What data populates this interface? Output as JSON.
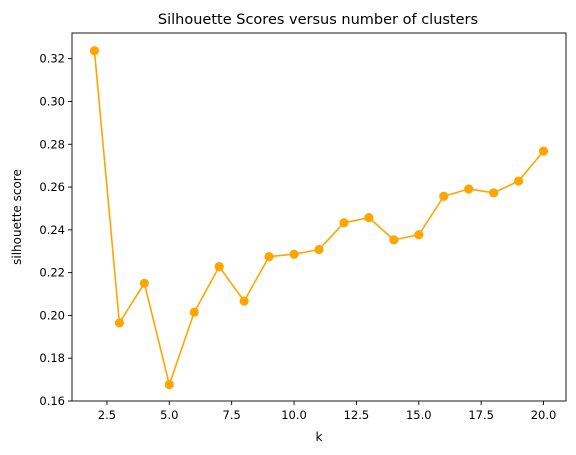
{
  "chart_data": {
    "type": "line",
    "title": "Silhouette Scores versus number of clusters",
    "xlabel": "k",
    "ylabel": "silhouette score",
    "xlim": [
      1.1,
      20.9
    ],
    "ylim": [
      0.16,
      0.332
    ],
    "x_ticks": [
      2.5,
      5.0,
      7.5,
      10.0,
      12.5,
      15.0,
      17.5,
      20.0
    ],
    "x_tick_labels": [
      "2.5",
      "5.0",
      "7.5",
      "10.0",
      "12.5",
      "15.0",
      "17.5",
      "20.0"
    ],
    "y_ticks": [
      0.16,
      0.18,
      0.2,
      0.22,
      0.24,
      0.26,
      0.28,
      0.3,
      0.32
    ],
    "y_tick_labels": [
      "0.16",
      "0.18",
      "0.20",
      "0.22",
      "0.24",
      "0.26",
      "0.28",
      "0.30",
      "0.32"
    ],
    "grid": false,
    "legend": "none",
    "series": [
      {
        "color": "#ffa500",
        "marker": "circle",
        "x": [
          2,
          3,
          4,
          5,
          6,
          7,
          8,
          9,
          10,
          11,
          12,
          13,
          14,
          15,
          16,
          17,
          18,
          19,
          20
        ],
        "values": [
          0.3237,
          0.1965,
          0.215,
          0.1677,
          0.2015,
          0.2228,
          0.2067,
          0.2275,
          0.2286,
          0.2308,
          0.2433,
          0.2457,
          0.2353,
          0.2377,
          0.2557,
          0.2591,
          0.2573,
          0.2628,
          0.2768
        ]
      }
    ]
  }
}
